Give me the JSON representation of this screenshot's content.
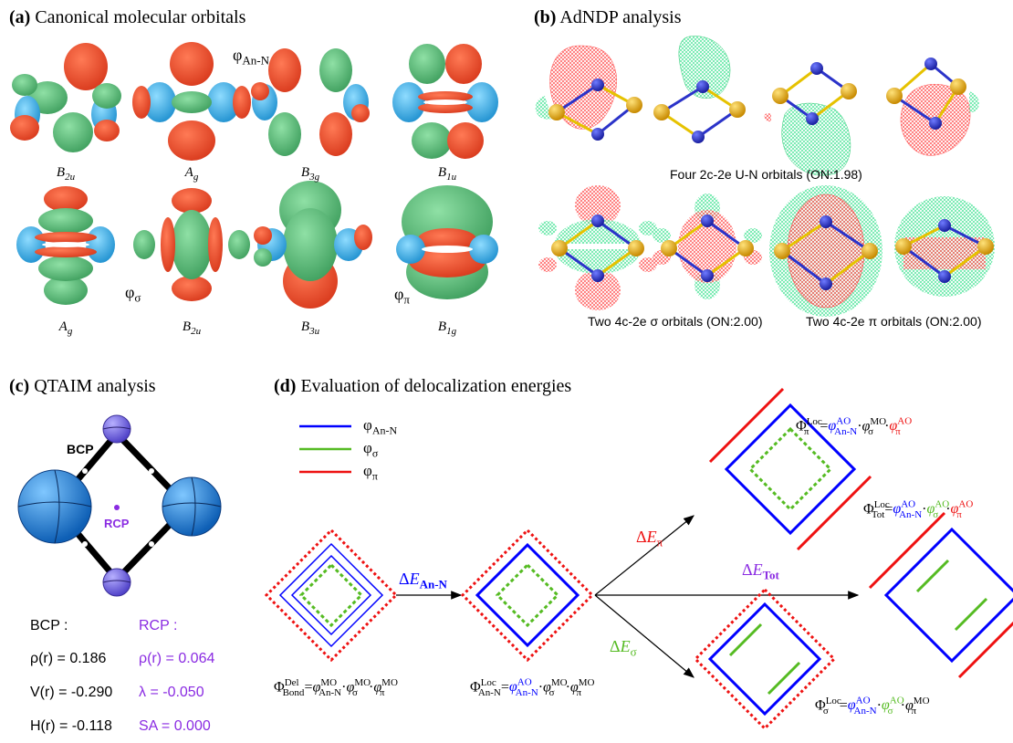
{
  "panels": {
    "a": {
      "letter": "(a)",
      "title": "Canonical molecular orbitals",
      "phi_label": "φAn-N",
      "phi_sigma": "φσ",
      "phi_pi": "φπ",
      "row1": [
        {
          "base": "B",
          "sub": "2u"
        },
        {
          "base": "A",
          "sub": "g"
        },
        {
          "base": "B",
          "sub": "3g"
        },
        {
          "base": "B",
          "sub": "1u"
        }
      ],
      "row2": [
        {
          "base": "A",
          "sub": "g"
        },
        {
          "base": "B",
          "sub": "2u"
        },
        {
          "base": "B",
          "sub": "3u"
        },
        {
          "base": "B",
          "sub": "1g"
        }
      ]
    },
    "b": {
      "letter": "(b)",
      "title": "AdNDP analysis",
      "caption1": "Four  2c-2e U-N orbitals (ON:1.98)",
      "caption2": "Two  4c-2e σ orbitals (ON:2.00)",
      "caption3": "Two  4c-2e π orbitals (ON:2.00)"
    },
    "c": {
      "letter": "(c)",
      "title": "QTAIM analysis",
      "bcp_tag": "BCP",
      "rcp_tag": "RCP",
      "bcp_header": "BCP :",
      "rcp_header": "RCP :",
      "bcp_rows": [
        "ρ(r) = 0.186",
        "V(r) = -0.290",
        "H(r) = -0.118"
      ],
      "rcp_rows": [
        "ρ(r) = 0.064",
        "λ = -0.050",
        "SA = 0.000"
      ]
    },
    "d": {
      "letter": "(d)",
      "title": "Evaluation of delocalization energies",
      "legend": [
        "φAn-N",
        "φσ",
        "φπ"
      ],
      "dE_AnN": "ΔEAn-N",
      "dE_pi": "ΔEπ",
      "dE_sigma": "ΔEσ",
      "dE_tot": "ΔETot",
      "f_bond": "Φ^Del_Bond = φ^MO_An-N · φ^MO_σ · φ^MO_π",
      "f_ann": "Φ^Loc_An-N = φ^AO_An-N · φ^MO_σ · φ^MO_π",
      "f_pi": "Φ^Loc_π = φ^AO_An-N · φ^MO_σ · φ^AO_π",
      "f_tot": "Φ^Loc_Tot = φ^AO_An-N · φ^AO_σ · φ^AO_π",
      "f_sigma": "Φ^Loc_σ = φ^AO_An-N · φ^AO_σ · φ^MO_π"
    }
  },
  "colors": {
    "blue": "#0000ff",
    "green": "#55bb22",
    "red": "#ee1111",
    "purple": "#8a2be2",
    "orb_red": "#e8492a",
    "orb_green": "#5cbf7a",
    "orb_cyan": "#3bb5e8"
  }
}
